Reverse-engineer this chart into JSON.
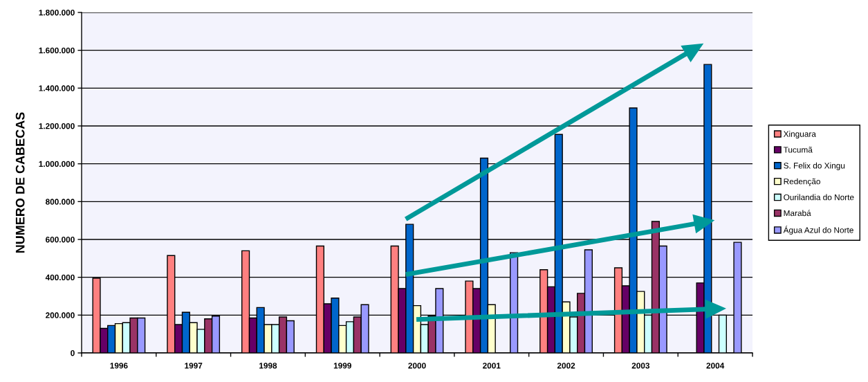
{
  "chart_data": {
    "type": "bar",
    "ylabel": "NUMERO DE CABECAS",
    "categories": [
      "1996",
      "1997",
      "1998",
      "1999",
      "2000",
      "2001",
      "2002",
      "2003",
      "2004"
    ],
    "series": [
      {
        "name": "Xinguara",
        "color": "#ff8080",
        "values": [
          395000,
          515000,
          540000,
          565000,
          565000,
          380000,
          440000,
          450000,
          null
        ]
      },
      {
        "name": "Tucumã",
        "color": "#660066",
        "values": [
          130000,
          150000,
          185000,
          260000,
          340000,
          340000,
          350000,
          355000,
          370000
        ]
      },
      {
        "name": "S. Felix do Xingu",
        "color": "#0066cc",
        "values": [
          145000,
          215000,
          240000,
          290000,
          680000,
          1030000,
          1155000,
          1295000,
          1525000
        ]
      },
      {
        "name": "Redenção",
        "color": "#ffffcc",
        "values": [
          155000,
          160000,
          150000,
          145000,
          250000,
          255000,
          270000,
          325000,
          null
        ]
      },
      {
        "name": "Ourilandia do Norte",
        "color": "#ccffff",
        "values": [
          160000,
          125000,
          150000,
          165000,
          150000,
          null,
          190000,
          200000,
          200000
        ]
      },
      {
        "name": "Marabá",
        "color": "#993366",
        "values": [
          185000,
          180000,
          190000,
          190000,
          195000,
          null,
          315000,
          695000,
          null
        ]
      },
      {
        "name": "Água Azul do Norte",
        "color": "#9999ff",
        "values": [
          185000,
          195000,
          170000,
          255000,
          340000,
          530000,
          545000,
          565000,
          585000
        ]
      }
    ],
    "ylim": [
      0,
      1800000
    ],
    "yticks": [
      0,
      {
        "value": 200000,
        "label": "200.000"
      },
      {
        "value": 400000,
        "label": "400.000"
      },
      {
        "value": 600000,
        "label": "600.000"
      },
      {
        "value": 800000,
        "label": "800.000"
      },
      {
        "value": 1000000,
        "label": "1.000.000"
      },
      {
        "value": 1200000,
        "label": "1.200.000"
      },
      {
        "value": 1400000,
        "label": "1.400.000"
      },
      {
        "value": 1600000,
        "label": "1.600.000"
      },
      {
        "value": 1800000,
        "label": "1.800.000"
      }
    ],
    "grid": "y",
    "legend": "right"
  }
}
